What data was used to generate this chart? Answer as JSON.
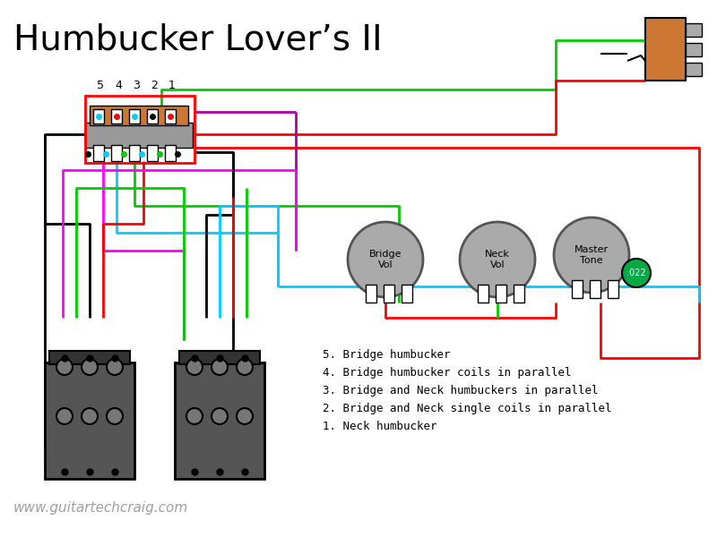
{
  "title": "Humbucker Lover’s II",
  "title_fontsize": 28,
  "background_color": "#ffffff",
  "text_color": "#000000",
  "watermark": "www.guitartechcraig.com",
  "legend_lines": [
    "5. Bridge humbucker",
    "4. Bridge humbucker coils in parallel",
    "3. Bridge and Neck humbuckers in parallel",
    "2. Bridge and Neck single coils in parallel",
    "1. Neck humbucker"
  ],
  "colors": {
    "red": "#ff0000",
    "green": "#00cc00",
    "black": "#000000",
    "cyan": "#00ccff",
    "purple": "#aa00aa",
    "magenta": "#ff00ff",
    "orange_brown": "#cc6600",
    "gray": "#888888",
    "light_gray": "#aaaaaa",
    "white": "#ffffff",
    "dark_gray": "#555555"
  }
}
